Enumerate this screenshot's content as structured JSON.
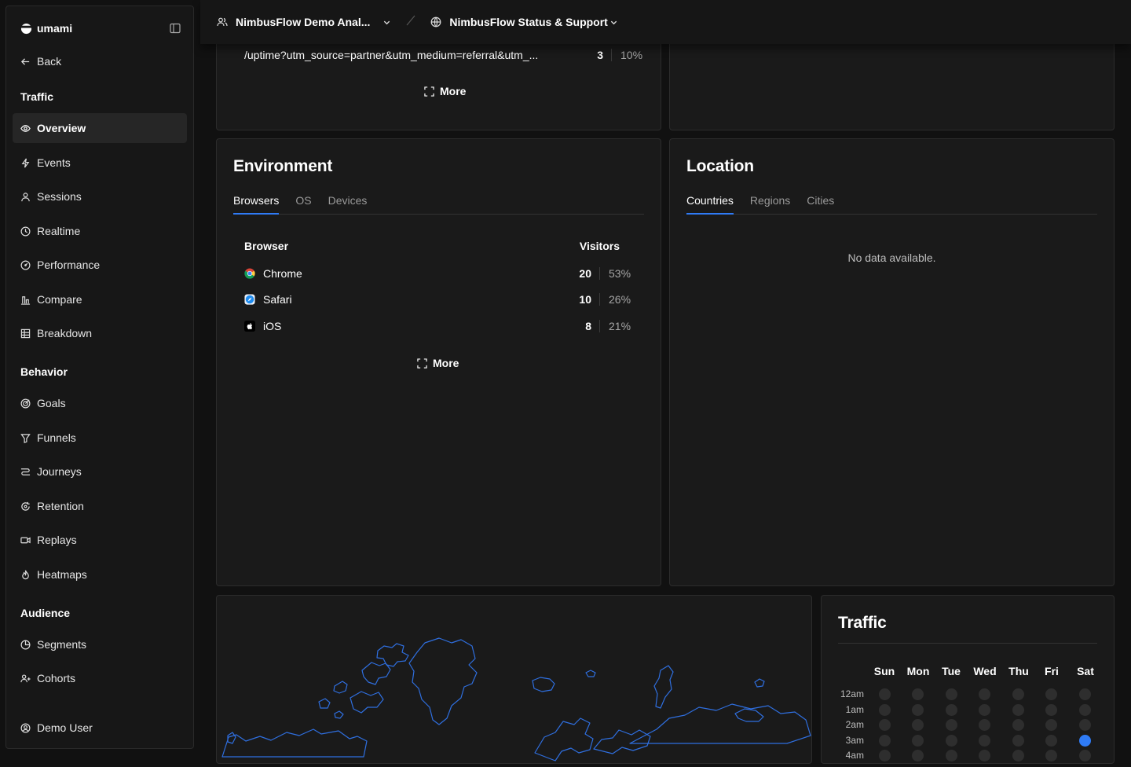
{
  "sidebar": {
    "brand": "umami",
    "back": "Back",
    "sections": {
      "traffic": "Traffic",
      "behavior": "Behavior",
      "audience": "Audience"
    },
    "traffic_items": [
      {
        "label": "Overview",
        "icon": "eye-icon",
        "active": true
      },
      {
        "label": "Events",
        "icon": "lightning-icon"
      },
      {
        "label": "Sessions",
        "icon": "user-icon"
      },
      {
        "label": "Realtime",
        "icon": "clock-icon"
      },
      {
        "label": "Performance",
        "icon": "gauge-icon"
      },
      {
        "label": "Compare",
        "icon": "compare-icon"
      },
      {
        "label": "Breakdown",
        "icon": "grid-icon"
      }
    ],
    "behavior_items": [
      {
        "label": "Goals",
        "icon": "target-icon"
      },
      {
        "label": "Funnels",
        "icon": "funnel-icon"
      },
      {
        "label": "Journeys",
        "icon": "route-icon"
      },
      {
        "label": "Retention",
        "icon": "retention-icon"
      },
      {
        "label": "Replays",
        "icon": "video-icon"
      },
      {
        "label": "Heatmaps",
        "icon": "flame-icon"
      }
    ],
    "audience_items": [
      {
        "label": "Segments",
        "icon": "pie-icon"
      },
      {
        "label": "Cohorts",
        "icon": "users-icon"
      }
    ],
    "user": "Demo User"
  },
  "topbar": {
    "team": "NimbusFlow Demo Anal...",
    "website": "NimbusFlow Status & Support"
  },
  "pages_panel": {
    "last_row": {
      "path": "/uptime?utm_source=partner&utm_medium=referral&utm_...",
      "count": "3",
      "pct": "10%"
    },
    "more": "More"
  },
  "environment": {
    "title": "Environment",
    "tabs": [
      "Browsers",
      "OS",
      "Devices"
    ],
    "active_tab": "Browsers",
    "col_name": "Browser",
    "col_value": "Visitors",
    "rows": [
      {
        "name": "Chrome",
        "icon": "chrome-icon",
        "count": "20",
        "pct": "53%"
      },
      {
        "name": "Safari",
        "icon": "safari-icon",
        "count": "10",
        "pct": "26%"
      },
      {
        "name": "iOS",
        "icon": "apple-icon",
        "count": "8",
        "pct": "21%"
      }
    ],
    "more": "More"
  },
  "location": {
    "title": "Location",
    "tabs": [
      "Countries",
      "Regions",
      "Cities"
    ],
    "active_tab": "Countries",
    "empty": "No data available."
  },
  "traffic": {
    "title": "Traffic",
    "days": [
      "Sun",
      "Mon",
      "Tue",
      "Wed",
      "Thu",
      "Fri",
      "Sat"
    ],
    "hours": [
      "12am",
      "1am",
      "2am",
      "3am",
      "4am"
    ],
    "hot_cells": [
      {
        "day": "Sat",
        "hour": "3am"
      }
    ],
    "accent": "#2f7bf5"
  },
  "colors": {
    "accent": "#2f7bf5",
    "panel": "#1a1a1a",
    "map_stroke": "#2f6fe0"
  }
}
